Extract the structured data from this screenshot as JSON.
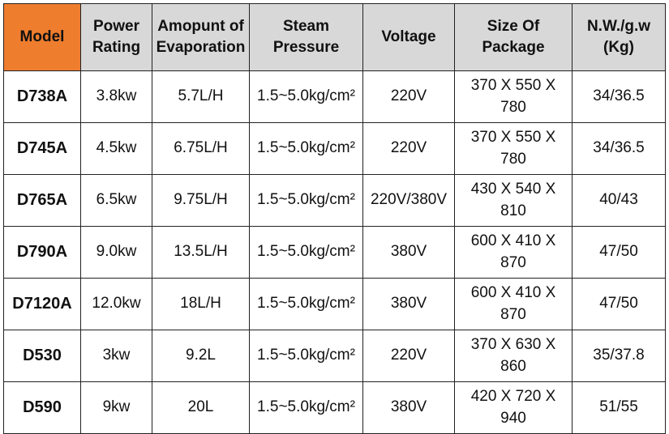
{
  "table": {
    "header_color": "#d8d8d8",
    "model_header_color": "#ef7d2e",
    "headers": [
      "Model",
      "Power\nRating",
      "Amopunt of\nEvaporation",
      "Steam\nPressure",
      "Voltage",
      "Size Of\nPackage",
      "N.W./g.w\n(Kg)"
    ],
    "rows": [
      [
        "D738A",
        "3.8kw",
        "5.7L/H",
        "1.5~5.0kg/cm²",
        "220V",
        "370 X 550 X\n780",
        "34/36.5"
      ],
      [
        "D745A",
        "4.5kw",
        "6.75L/H",
        "1.5~5.0kg/cm²",
        "220V",
        "370 X 550 X\n780",
        "34/36.5"
      ],
      [
        "D765A",
        "6.5kw",
        "9.75L/H",
        "1.5~5.0kg/cm²",
        "220V/380V",
        "430 X 540 X\n810",
        "40/43"
      ],
      [
        "D790A",
        "9.0kw",
        "13.5L/H",
        "1.5~5.0kg/cm²",
        "380V",
        "600 X 410 X\n870",
        "47/50"
      ],
      [
        "D7120A",
        "12.0kw",
        "18L/H",
        "1.5~5.0kg/cm²",
        "380V",
        "600 X 410 X\n870",
        "47/50"
      ],
      [
        "D530",
        "3kw",
        "9.2L",
        "1.5~5.0kg/cm²",
        "220V",
        "370 X 630 X\n860",
        "35/37.8"
      ],
      [
        "D590",
        "9kw",
        "20L",
        "1.5~5.0kg/cm²",
        "380V",
        "420 X 720 X\n940",
        "51/55"
      ]
    ]
  }
}
